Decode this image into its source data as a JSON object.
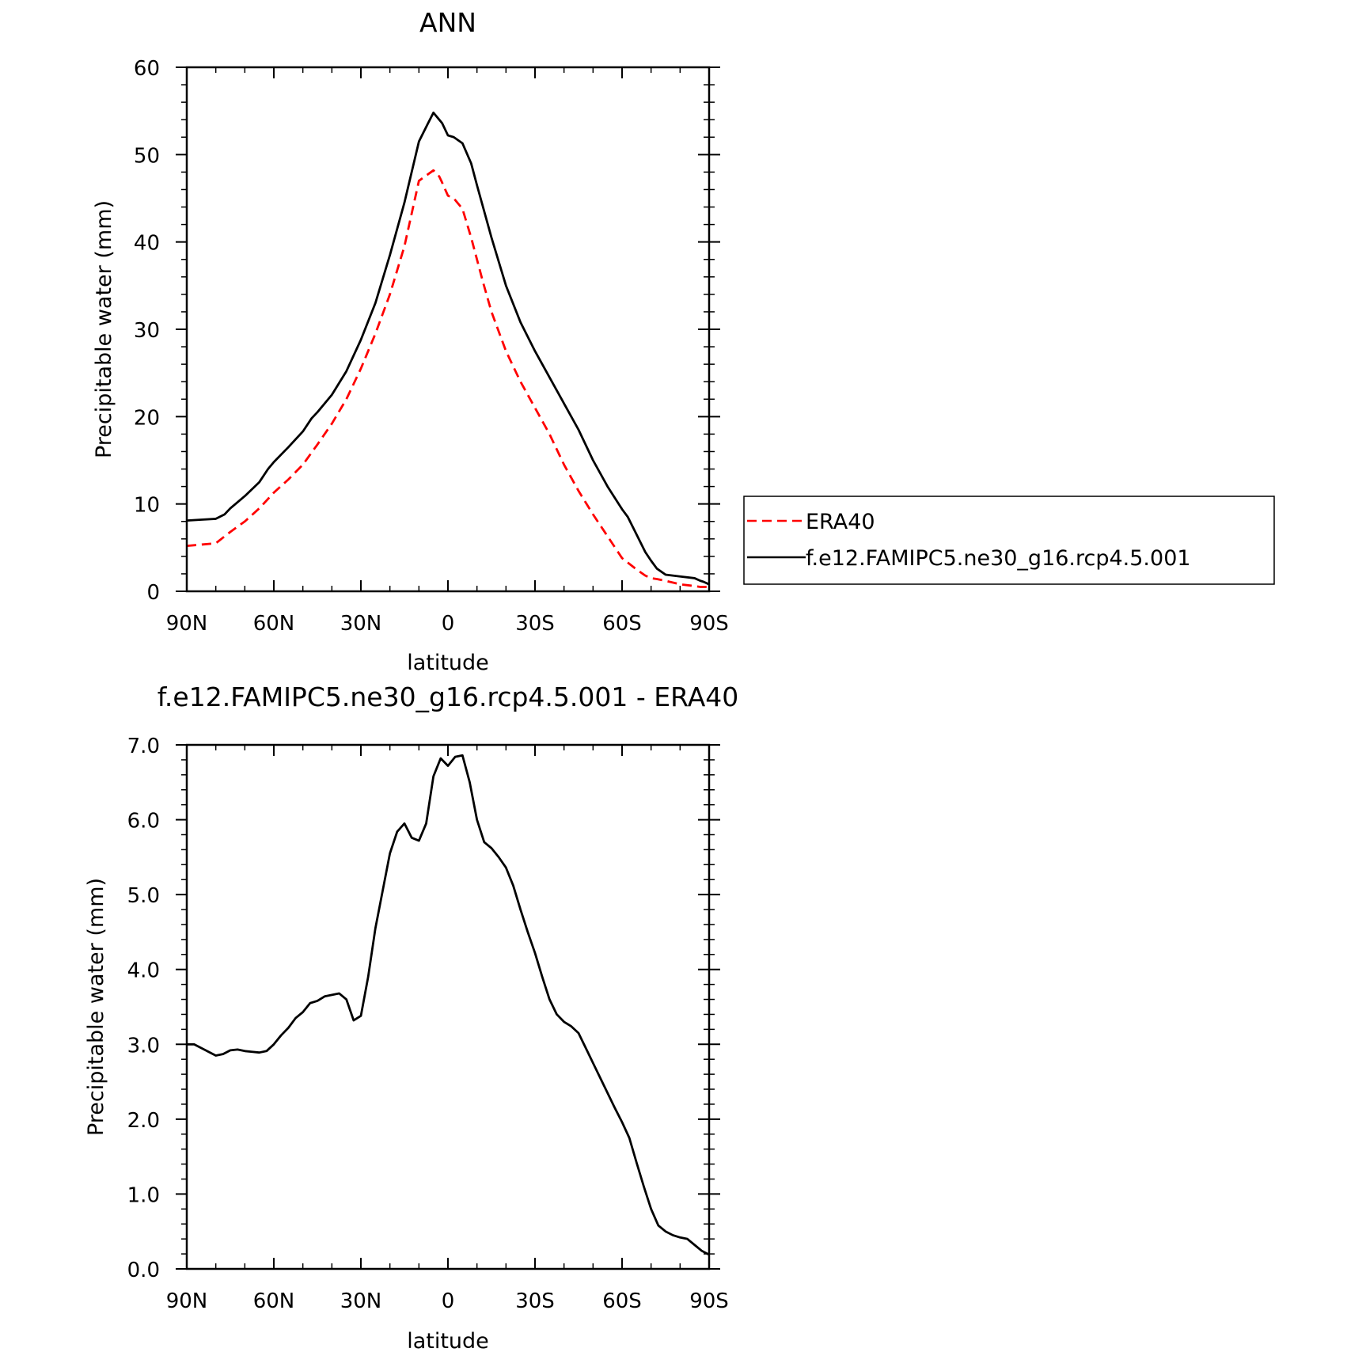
{
  "colors": {
    "era40": "#ff0000",
    "model": "#000000",
    "axes": "#000000",
    "background": "#ffffff"
  },
  "chart_data": [
    {
      "type": "line",
      "title": "ANN",
      "xlabel": "latitude",
      "ylabel": "Precipitable water (mm)",
      "xlim": [
        90,
        -90
      ],
      "ylim": [
        0,
        60
      ],
      "xticks": [
        90,
        60,
        30,
        0,
        -30,
        -60,
        -90
      ],
      "xtick_labels": [
        "90N",
        "60N",
        "30N",
        "0",
        "30S",
        "60S",
        "90S"
      ],
      "yticks": [
        0,
        10,
        20,
        30,
        40,
        50,
        60
      ],
      "ytick_labels": [
        "0",
        "10",
        "20",
        "30",
        "40",
        "50",
        "60"
      ],
      "grid": false,
      "legend_position": "right-of-plot",
      "series": [
        {
          "name": "ERA40",
          "key": "era40",
          "style": "dashed",
          "x": [
            90,
            80,
            75,
            70,
            65,
            60,
            55,
            50,
            45,
            40,
            35,
            30,
            25,
            20,
            15,
            10,
            5,
            3,
            2,
            0,
            -2,
            -5,
            -8,
            -12,
            -15,
            -20,
            -25,
            -30,
            -35,
            -40,
            -45,
            -50,
            -55,
            -60,
            -65,
            -68,
            -70,
            -72,
            -75,
            -80,
            -85,
            -87,
            -88,
            -90
          ],
          "values": [
            5.2,
            5.5,
            6.8,
            8.0,
            9.5,
            11.3,
            12.8,
            14.5,
            16.8,
            19.2,
            22.0,
            25.5,
            29.5,
            34.0,
            39.5,
            47.0,
            48.2,
            47.5,
            46.8,
            45.3,
            45.0,
            43.8,
            40.5,
            35.5,
            32.0,
            27.5,
            24.0,
            21.0,
            18.0,
            14.5,
            11.5,
            8.8,
            6.3,
            3.8,
            2.5,
            1.8,
            1.5,
            1.4,
            1.2,
            0.8,
            0.6,
            0.5,
            0.5,
            0.5
          ]
        },
        {
          "name": "f.e12.FAMIPC5.ne30_g16.rcp4.5.001",
          "key": "model",
          "style": "solid",
          "x": [
            90,
            85,
            80,
            77,
            75,
            70,
            65,
            62,
            60,
            55,
            50,
            47,
            45,
            40,
            35,
            30,
            25,
            20,
            15,
            10,
            7,
            5,
            3,
            2,
            0,
            -2,
            -5,
            -8,
            -10,
            -15,
            -20,
            -25,
            -30,
            -35,
            -40,
            -45,
            -50,
            -55,
            -60,
            -62,
            -65,
            -68,
            -70,
            -72,
            -75,
            -80,
            -85,
            -87,
            -88,
            -90
          ],
          "values": [
            8.1,
            8.2,
            8.3,
            8.8,
            9.5,
            10.9,
            12.5,
            14.0,
            14.8,
            16.5,
            18.3,
            19.8,
            20.5,
            22.5,
            25.2,
            28.8,
            33.0,
            38.5,
            44.5,
            51.5,
            53.5,
            54.8,
            54.0,
            53.6,
            52.2,
            52.0,
            51.3,
            49.0,
            46.5,
            40.5,
            35.0,
            30.8,
            27.5,
            24.5,
            21.5,
            18.5,
            15.0,
            12.0,
            9.4,
            8.5,
            6.5,
            4.5,
            3.5,
            2.6,
            1.9,
            1.7,
            1.5,
            1.2,
            1.1,
            0.8
          ]
        }
      ]
    },
    {
      "type": "line",
      "title": "f.e12.FAMIPC5.ne30_g16.rcp4.5.001 - ERA40",
      "xlabel": "latitude",
      "ylabel": "Precipitable water (mm)",
      "xlim": [
        90,
        -90
      ],
      "ylim": [
        0,
        7
      ],
      "xticks": [
        90,
        60,
        30,
        0,
        -30,
        -60,
        -90
      ],
      "xtick_labels": [
        "90N",
        "60N",
        "30N",
        "0",
        "30S",
        "60S",
        "90S"
      ],
      "yticks": [
        0,
        1,
        2,
        3,
        4,
        5,
        6,
        7
      ],
      "ytick_labels": [
        "0.0",
        "1.0",
        "2.0",
        "3.0",
        "4.0",
        "5.0",
        "6.0",
        "7.0"
      ],
      "grid": false,
      "series": [
        {
          "key": "diff",
          "style": "solid",
          "x": [
            90,
            87.5,
            85,
            82.5,
            80,
            77.5,
            75,
            72.5,
            70,
            67.5,
            65,
            62.5,
            60,
            57.5,
            55,
            52.5,
            50,
            47.5,
            45,
            42.5,
            40,
            37.5,
            35,
            32.5,
            30,
            27.5,
            25,
            22.5,
            20,
            17.5,
            15,
            12.5,
            10,
            7.5,
            5,
            2.5,
            0,
            -2.5,
            -5,
            -7.5,
            -10,
            -12.5,
            -15,
            -17.5,
            -20,
            -22.5,
            -25,
            -27.5,
            -30,
            -32.5,
            -35,
            -37.5,
            -40,
            -42.5,
            -45,
            -47.5,
            -50,
            -52.5,
            -55,
            -57.5,
            -60,
            -62.5,
            -65,
            -67.5,
            -70,
            -72.5,
            -75,
            -77.5,
            -80,
            -82.5,
            -85,
            -87.5,
            -90
          ],
          "values": [
            3.0,
            3.0,
            2.95,
            2.9,
            2.85,
            2.87,
            2.92,
            2.93,
            2.91,
            2.9,
            2.89,
            2.91,
            3.0,
            3.12,
            3.22,
            3.35,
            3.43,
            3.55,
            3.58,
            3.64,
            3.66,
            3.68,
            3.6,
            3.32,
            3.38,
            3.9,
            4.55,
            5.05,
            5.55,
            5.84,
            5.95,
            5.76,
            5.72,
            5.95,
            6.58,
            6.82,
            6.72,
            6.84,
            6.86,
            6.5,
            6.0,
            5.7,
            5.62,
            5.5,
            5.36,
            5.12,
            4.8,
            4.5,
            4.22,
            3.9,
            3.6,
            3.4,
            3.3,
            3.24,
            3.15,
            2.95,
            2.75,
            2.55,
            2.35,
            2.15,
            1.96,
            1.75,
            1.42,
            1.1,
            0.8,
            0.58,
            0.5,
            0.45,
            0.42,
            0.4,
            0.32,
            0.24,
            0.19
          ]
        }
      ]
    }
  ]
}
